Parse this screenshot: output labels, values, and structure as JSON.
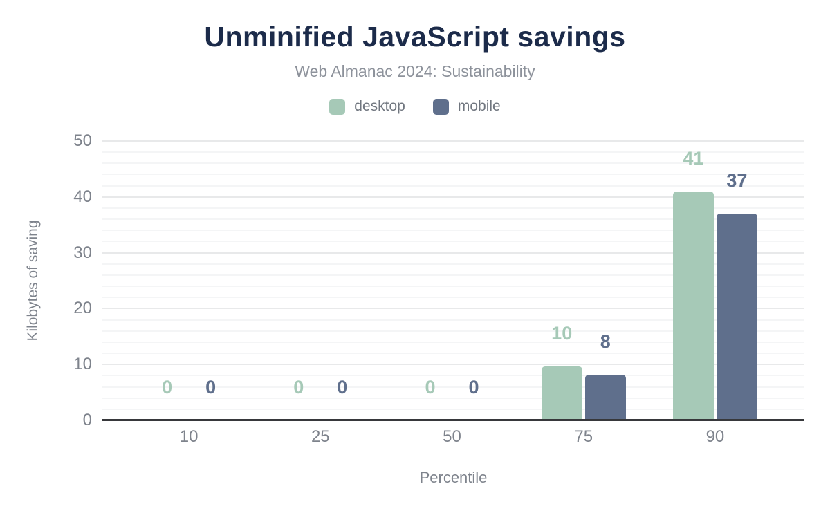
{
  "header": {
    "title": "Unminified JavaScript savings",
    "subtitle": "Web Almanac 2024: Sustainability"
  },
  "legend": {
    "items": [
      {
        "label": "desktop",
        "color": "#a6c9b7"
      },
      {
        "label": "mobile",
        "color": "#5f6f8c"
      }
    ]
  },
  "axes": {
    "x_title": "Percentile",
    "y_title": "Kilobytes of saving"
  },
  "chart_data": {
    "type": "bar",
    "title": "Unminified JavaScript savings",
    "subtitle": "Web Almanac 2024: Sustainability",
    "categories": [
      "10",
      "25",
      "50",
      "75",
      "90"
    ],
    "series": [
      {
        "name": "desktop",
        "color": "#a6c9b7",
        "values": [
          0,
          0,
          0,
          9.7,
          41
        ],
        "labels": [
          "0",
          "0",
          "0",
          "10",
          "41"
        ]
      },
      {
        "name": "mobile",
        "color": "#5f6f8c",
        "values": [
          0,
          0,
          0,
          8.2,
          37
        ],
        "labels": [
          "0",
          "0",
          "0",
          "8",
          "37"
        ]
      }
    ],
    "xlabel": "Percentile",
    "ylabel": "Kilobytes of saving",
    "ylim": [
      0,
      50
    ],
    "y_ticks": [
      0,
      10,
      20,
      30,
      40,
      50
    ],
    "y_minor_step": 2,
    "y_major_step": 10,
    "grid": true,
    "legend_position": "top"
  },
  "colors": {
    "title": "#1c2b4a",
    "subtitle": "#8d929b",
    "axis_text": "#7e838c",
    "legend_text": "#70767f",
    "axis_line": "#37383b",
    "grid_major": "#e8e9ea",
    "grid_minor": "#f4f5f6"
  }
}
